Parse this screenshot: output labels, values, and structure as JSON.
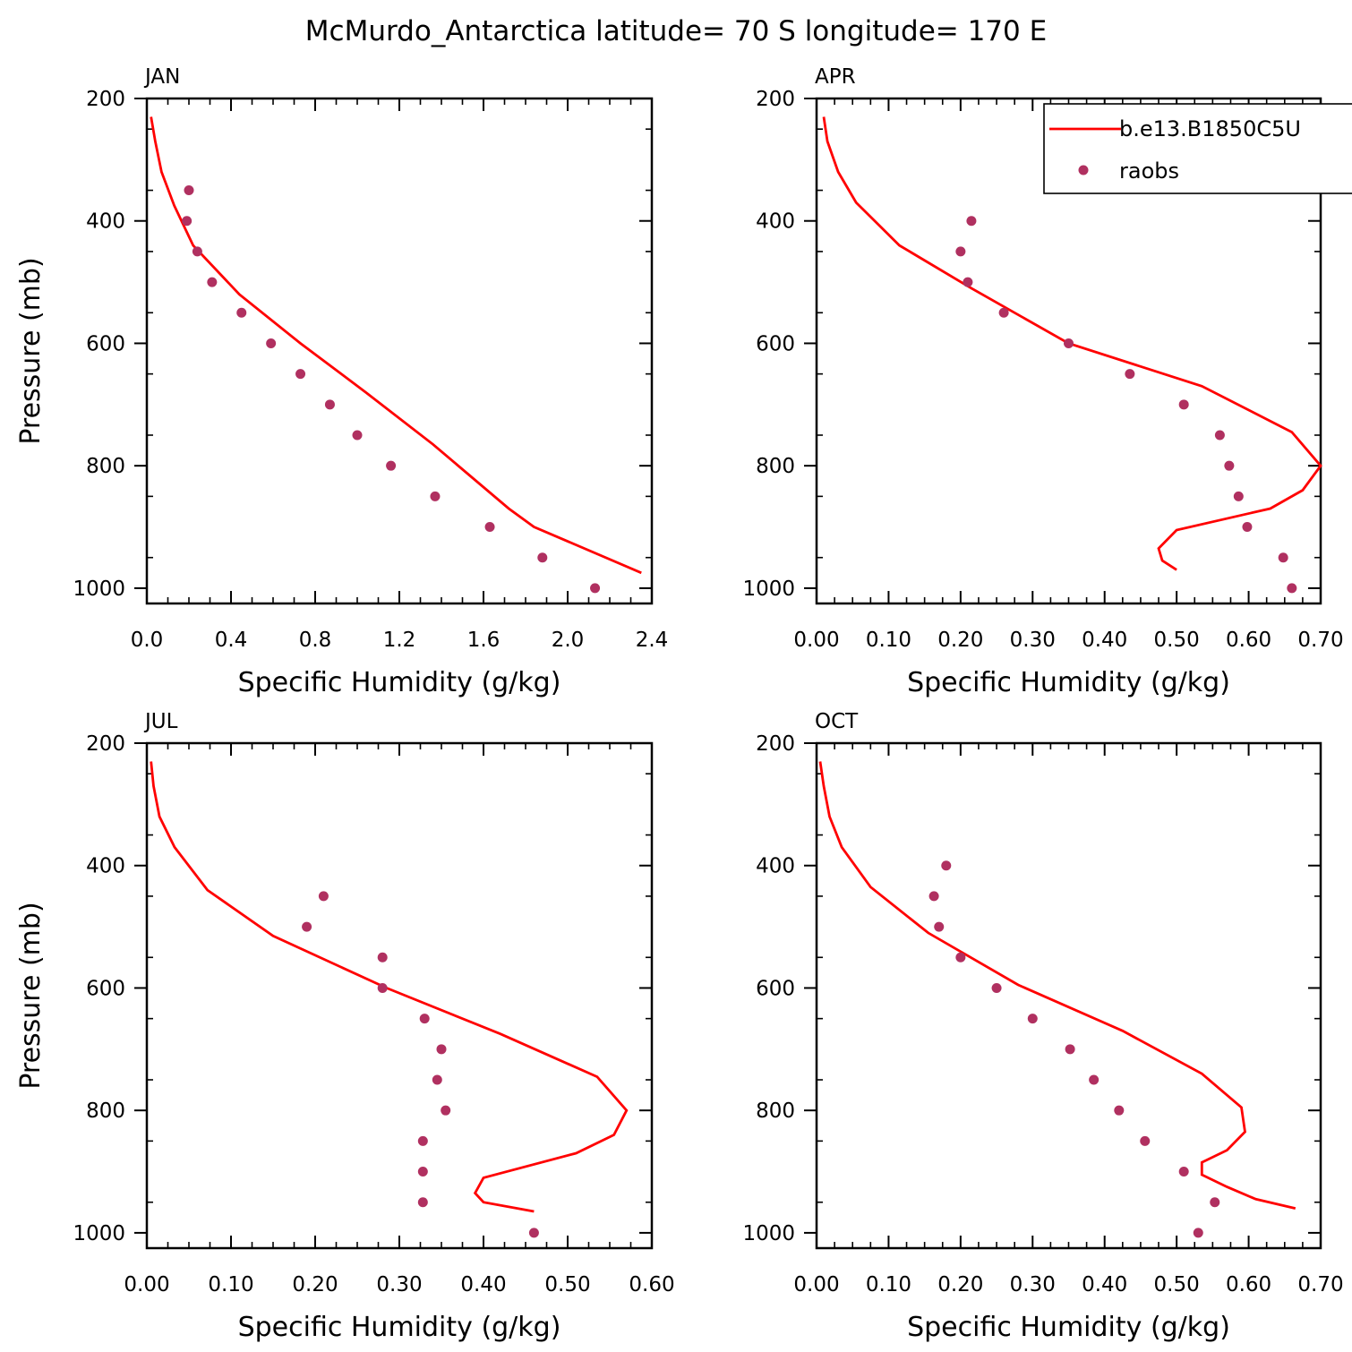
{
  "figure_title": "McMurdo_Antarctica  latitude= 70 S longitude= 170 E",
  "legend": {
    "model_label": "b.e13.B1850C5U",
    "obs_label": "raobs",
    "placement": "top-right of APR panel"
  },
  "colors": {
    "model_line": "#ff0000",
    "obs_marker": "#b03060",
    "axes": "#000000",
    "background": "#ffffff"
  },
  "chart_data": [
    {
      "type": "line",
      "panel": "JAN",
      "title": "JAN",
      "xlabel": "Specific Humidity (g/kg)",
      "ylabel": "Pressure (mb)",
      "xlim": [
        0,
        2.4
      ],
      "ylim": [
        200,
        1025
      ],
      "y_inverted": true,
      "xticks": [
        0.0,
        0.4,
        0.8,
        1.2,
        1.6,
        2.0,
        2.4
      ],
      "xtick_labels": [
        "0.0",
        "0.4",
        "0.8",
        "1.2",
        "1.6",
        "2.0",
        "2.4"
      ],
      "yticks": [
        200,
        400,
        600,
        800,
        1000
      ],
      "ytick_labels": [
        "200",
        "400",
        "600",
        "800",
        "1000"
      ],
      "series": [
        {
          "name": "b.e13.B1850C5U",
          "style": "line",
          "x": [
            0.02,
            0.04,
            0.07,
            0.13,
            0.22,
            0.44,
            0.73,
            1.04,
            1.36,
            1.72,
            1.84,
            2.35
          ],
          "y": [
            230,
            270,
            320,
            375,
            440,
            520,
            600,
            680,
            765,
            870,
            900,
            975
          ]
        },
        {
          "name": "raobs",
          "style": "scatter",
          "x": [
            0.2,
            0.19,
            0.24,
            0.31,
            0.45,
            0.59,
            0.73,
            0.87,
            1.0,
            1.16,
            1.37,
            1.63,
            1.88,
            2.13
          ],
          "y": [
            350,
            400,
            450,
            500,
            550,
            600,
            650,
            700,
            750,
            800,
            850,
            900,
            950,
            1000
          ]
        }
      ]
    },
    {
      "type": "line",
      "panel": "APR",
      "title": "APR",
      "xlabel": "Specific Humidity (g/kg)",
      "ylabel": "",
      "xlim": [
        0,
        0.7
      ],
      "ylim": [
        200,
        1025
      ],
      "y_inverted": true,
      "xticks": [
        0.0,
        0.1,
        0.2,
        0.3,
        0.4,
        0.5,
        0.6,
        0.7
      ],
      "xtick_labels": [
        "0.00",
        "0.10",
        "0.20",
        "0.30",
        "0.40",
        "0.50",
        "0.60",
        "0.70"
      ],
      "yticks": [
        200,
        400,
        600,
        800,
        1000
      ],
      "ytick_labels": [
        "200",
        "400",
        "600",
        "800",
        "1000"
      ],
      "series": [
        {
          "name": "b.e13.B1850C5U",
          "style": "line",
          "x": [
            0.01,
            0.015,
            0.03,
            0.055,
            0.115,
            0.215,
            0.35,
            0.535,
            0.66,
            0.7,
            0.675,
            0.63,
            0.5,
            0.475,
            0.48,
            0.5
          ],
          "y": [
            230,
            270,
            320,
            370,
            440,
            510,
            600,
            670,
            745,
            800,
            840,
            870,
            905,
            935,
            955,
            970
          ]
        },
        {
          "name": "raobs",
          "style": "scatter",
          "x": [
            0.215,
            0.2,
            0.21,
            0.26,
            0.35,
            0.435,
            0.51,
            0.56,
            0.573,
            0.586,
            0.598,
            0.648,
            0.66
          ],
          "y": [
            400,
            450,
            500,
            550,
            600,
            650,
            700,
            750,
            800,
            850,
            900,
            950,
            1000
          ]
        }
      ]
    },
    {
      "type": "line",
      "panel": "JUL",
      "title": "JUL",
      "xlabel": "Specific Humidity (g/kg)",
      "ylabel": "Pressure (mb)",
      "xlim": [
        0,
        0.6
      ],
      "ylim": [
        200,
        1025
      ],
      "y_inverted": true,
      "xticks": [
        0.0,
        0.1,
        0.2,
        0.3,
        0.4,
        0.5,
        0.6
      ],
      "xtick_labels": [
        "0.00",
        "0.10",
        "0.20",
        "0.30",
        "0.40",
        "0.50",
        "0.60"
      ],
      "yticks": [
        200,
        400,
        600,
        800,
        1000
      ],
      "ytick_labels": [
        "200",
        "400",
        "600",
        "800",
        "1000"
      ],
      "series": [
        {
          "name": "b.e13.B1850C5U",
          "style": "line",
          "x": [
            0.005,
            0.008,
            0.015,
            0.033,
            0.072,
            0.15,
            0.285,
            0.42,
            0.535,
            0.57,
            0.555,
            0.51,
            0.4,
            0.39,
            0.4,
            0.46
          ],
          "y": [
            230,
            270,
            320,
            370,
            440,
            515,
            600,
            675,
            745,
            800,
            840,
            870,
            910,
            935,
            950,
            965
          ]
        },
        {
          "name": "raobs",
          "style": "scatter",
          "x": [
            0.21,
            0.19,
            0.28,
            0.28,
            0.33,
            0.35,
            0.345,
            0.355,
            0.328,
            0.328,
            0.328,
            0.46
          ],
          "y": [
            450,
            500,
            550,
            600,
            650,
            700,
            750,
            800,
            850,
            900,
            950,
            1000
          ]
        }
      ]
    },
    {
      "type": "line",
      "panel": "OCT",
      "title": "OCT",
      "xlabel": "Specific Humidity (g/kg)",
      "ylabel": "",
      "xlim": [
        0,
        0.7
      ],
      "ylim": [
        200,
        1025
      ],
      "y_inverted": true,
      "xticks": [
        0.0,
        0.1,
        0.2,
        0.3,
        0.4,
        0.5,
        0.6,
        0.7
      ],
      "xtick_labels": [
        "0.00",
        "0.10",
        "0.20",
        "0.30",
        "0.40",
        "0.50",
        "0.60",
        "0.70"
      ],
      "yticks": [
        200,
        400,
        600,
        800,
        1000
      ],
      "ytick_labels": [
        "200",
        "400",
        "600",
        "800",
        "1000"
      ],
      "series": [
        {
          "name": "b.e13.B1850C5U",
          "style": "line",
          "x": [
            0.005,
            0.01,
            0.018,
            0.035,
            0.075,
            0.155,
            0.28,
            0.425,
            0.535,
            0.59,
            0.595,
            0.57,
            0.535,
            0.535,
            0.57,
            0.61,
            0.665
          ],
          "y": [
            230,
            270,
            320,
            370,
            435,
            510,
            595,
            670,
            740,
            795,
            835,
            865,
            885,
            905,
            925,
            945,
            960
          ]
        },
        {
          "name": "raobs",
          "style": "scatter",
          "x": [
            0.18,
            0.163,
            0.17,
            0.2,
            0.25,
            0.3,
            0.352,
            0.385,
            0.42,
            0.456,
            0.51,
            0.553,
            0.53
          ],
          "y": [
            400,
            450,
            500,
            550,
            600,
            650,
            700,
            750,
            800,
            850,
            900,
            950,
            1000
          ]
        }
      ]
    }
  ]
}
